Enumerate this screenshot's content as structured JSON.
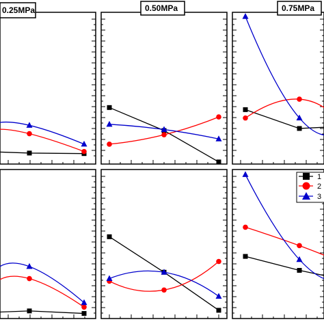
{
  "chart_data": {
    "type": "line",
    "panel_titles": [
      "0.25MPa",
      "0.50MPa",
      "0.75MPa"
    ],
    "legend": {
      "placement": "right-middle",
      "entries": [
        "1",
        "2",
        "3"
      ]
    },
    "colors": {
      "1": "#000000",
      "2": "#ff0000",
      "3": "#0000cc"
    },
    "x": [
      1,
      2,
      3
    ],
    "panels": [
      {
        "row": "top",
        "title": "0.25MPa",
        "series": [
          {
            "name": "1",
            "marker": "square",
            "values": [
              6.6,
              5.5,
              5.0
            ]
          },
          {
            "name": "2",
            "marker": "circle",
            "values": [
              28.0,
              24.0,
              7.0
            ]
          },
          {
            "name": "3",
            "marker": "triangle",
            "values": [
              34.0,
              32.0,
              14.0
            ]
          }
        ]
      },
      {
        "row": "top",
        "title": "0.50MPa",
        "series": [
          {
            "name": "1",
            "marker": "square",
            "values": [
              49.0,
              27.0,
              -3.0
            ]
          },
          {
            "name": "2",
            "marker": "circle",
            "values": [
              14.0,
              23.0,
              40.0
            ]
          },
          {
            "name": "3",
            "marker": "triangle",
            "values": [
              33.0,
              28.0,
              19.0
            ]
          }
        ]
      },
      {
        "row": "top",
        "title": "0.75MPa",
        "series": [
          {
            "name": "1",
            "marker": "square",
            "values": [
              47.0,
              29.0,
              31.0
            ]
          },
          {
            "name": "2",
            "marker": "circle",
            "values": [
              39.0,
              57.0,
              33.0
            ]
          },
          {
            "name": "3",
            "marker": "triangle",
            "values": [
              136.0,
              39.0,
              29.0
            ]
          }
        ]
      },
      {
        "row": "bottom",
        "title": "",
        "series": [
          {
            "name": "1",
            "marker": "square",
            "values": [
              5.0,
              7.0,
              3.0
            ]
          },
          {
            "name": "2",
            "marker": "circle",
            "values": [
              52.0,
              58.0,
              13.0
            ]
          },
          {
            "name": "3",
            "marker": "triangle",
            "values": [
              72.0,
              77.0,
              20.0
            ]
          }
        ]
      },
      {
        "row": "bottom",
        "title": "",
        "series": [
          {
            "name": "1",
            "marker": "square",
            "values": [
              124.0,
              68.0,
              8.0
            ]
          },
          {
            "name": "2",
            "marker": "circle",
            "values": [
              54.0,
              40.0,
              85.0
            ]
          },
          {
            "name": "3",
            "marker": "triangle",
            "values": [
              58.0,
              68.0,
              30.0
            ]
          }
        ]
      },
      {
        "row": "bottom",
        "title": "",
        "series": [
          {
            "name": "1",
            "marker": "square",
            "values": [
              93.0,
              71.0,
              57.0
            ]
          },
          {
            "name": "2",
            "marker": "circle",
            "values": [
              139.0,
              110.0,
              83.0
            ]
          },
          {
            "name": "3",
            "marker": "triangle",
            "values": [
              222.0,
              88.0,
              56.0
            ]
          }
        ]
      }
    ],
    "grid": false
  }
}
